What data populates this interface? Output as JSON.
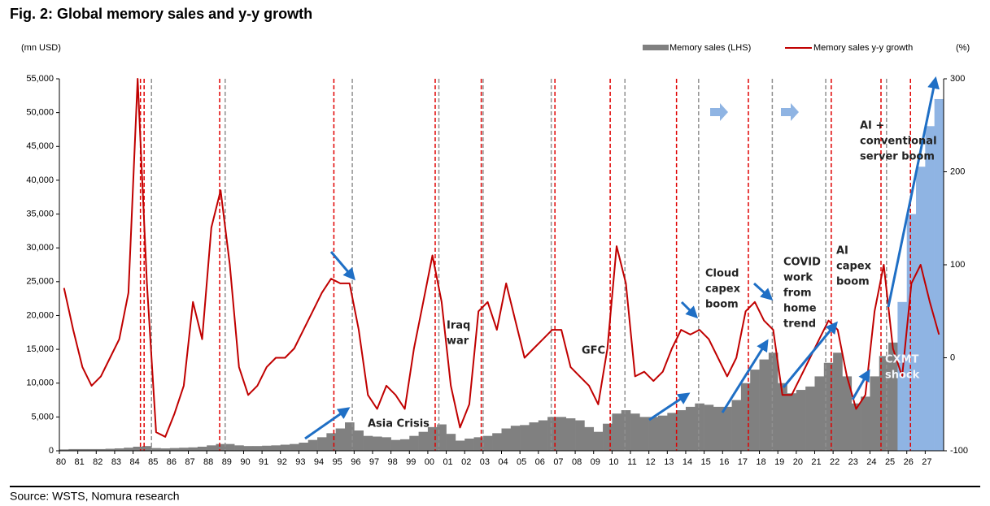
{
  "chart_data": {
    "type": "bar-line",
    "title": "Fig. 2: Global memory sales and y-y growth",
    "y_axis_label": "(mn USD)",
    "y2_axis_label": "(%)",
    "source": "Source: WSTS, Nomura research",
    "x": [
      1980,
      1980.5,
      1981,
      1981.5,
      1982,
      1982.5,
      1983,
      1983.5,
      1984,
      1984.5,
      1985,
      1985.5,
      1986,
      1986.5,
      1987,
      1987.5,
      1988,
      1988.5,
      1989,
      1989.5,
      1990,
      1990.5,
      1991,
      1991.5,
      1992,
      1992.5,
      1993,
      1993.5,
      1994,
      1994.5,
      1995,
      1995.5,
      1996,
      1996.5,
      1997,
      1997.5,
      1998,
      1998.5,
      1999,
      1999.5,
      2000,
      2000.5,
      2001,
      2001.5,
      2002,
      2002.5,
      2003,
      2003.5,
      2004,
      2004.5,
      2005,
      2005.5,
      2006,
      2006.5,
      2007,
      2007.5,
      2008,
      2008.5,
      2009,
      2009.5,
      2010,
      2010.5,
      2011,
      2011.5,
      2012,
      2012.5,
      2013,
      2013.5,
      2014,
      2014.5,
      2015,
      2015.5,
      2016,
      2016.5,
      2017,
      2017.5,
      2018,
      2018.5,
      2019,
      2019.5,
      2020,
      2020.5,
      2021,
      2021.5,
      2022,
      2022.5,
      2023,
      2023.5,
      2024,
      2024.5,
      2025,
      2025.5,
      2026,
      2026.5,
      2027,
      2027.5
    ],
    "series": [
      {
        "name": "Memory sales (LHS)",
        "kind": "bar",
        "color": "#808080",
        "values": [
          200,
          250,
          250,
          250,
          250,
          300,
          350,
          450,
          600,
          700,
          400,
          350,
          400,
          450,
          500,
          600,
          800,
          1000,
          1000,
          800,
          700,
          700,
          750,
          800,
          900,
          1000,
          1200,
          1600,
          2000,
          2600,
          3300,
          4200,
          3000,
          2200,
          2100,
          2000,
          1600,
          1700,
          2200,
          2800,
          3500,
          3900,
          2500,
          1500,
          1800,
          2000,
          2200,
          2600,
          3300,
          3700,
          3800,
          4200,
          4500,
          5000,
          5000,
          4800,
          4500,
          3500,
          2800,
          4000,
          5500,
          6000,
          5500,
          5000,
          5000,
          5200,
          5600,
          6000,
          6500,
          7000,
          6800,
          6500,
          6500,
          7500,
          10000,
          12000,
          13500,
          14500,
          10000,
          8500,
          9000,
          9500,
          11000,
          13000,
          14500,
          11000,
          7000,
          8000,
          11000,
          14000,
          16000,
          22000,
          35000,
          42000,
          48000,
          52000
        ],
        "colors": [
          "#808080",
          "#808080",
          "#808080",
          "#808080",
          "#808080",
          "#808080",
          "#808080",
          "#808080",
          "#808080",
          "#808080",
          "#808080",
          "#808080",
          "#808080",
          "#808080",
          "#808080",
          "#808080",
          "#808080",
          "#808080",
          "#808080",
          "#808080",
          "#808080",
          "#808080",
          "#808080",
          "#808080",
          "#808080",
          "#808080",
          "#808080",
          "#808080",
          "#808080",
          "#808080",
          "#808080",
          "#808080",
          "#808080",
          "#808080",
          "#808080",
          "#808080",
          "#808080",
          "#808080",
          "#808080",
          "#808080",
          "#808080",
          "#808080",
          "#808080",
          "#808080",
          "#808080",
          "#808080",
          "#808080",
          "#808080",
          "#808080",
          "#808080",
          "#808080",
          "#808080",
          "#808080",
          "#808080",
          "#808080",
          "#808080",
          "#808080",
          "#808080",
          "#808080",
          "#808080",
          "#808080",
          "#808080",
          "#808080",
          "#808080",
          "#808080",
          "#808080",
          "#808080",
          "#808080",
          "#808080",
          "#808080",
          "#808080",
          "#808080",
          "#808080",
          "#808080",
          "#808080",
          "#808080",
          "#808080",
          "#808080",
          "#808080",
          "#808080",
          "#808080",
          "#808080",
          "#808080",
          "#808080",
          "#808080",
          "#808080",
          "#808080",
          "#808080",
          "#808080",
          "#808080",
          "#808080",
          "#8fb4e3",
          "#8fb4e3",
          "#8fb4e3",
          "#8fb4e3",
          "#8fb4e3"
        ]
      },
      {
        "name": "Memory sales y-y growth",
        "kind": "line",
        "axis": "y2",
        "color": "#c00000",
        "values": [
          75,
          30,
          -10,
          -30,
          -20,
          0,
          20,
          70,
          300,
          80,
          -80,
          -85,
          -60,
          -30,
          60,
          20,
          140,
          180,
          100,
          -10,
          -40,
          -30,
          -10,
          0,
          0,
          10,
          30,
          50,
          70,
          85,
          80,
          80,
          30,
          -40,
          -55,
          -30,
          -40,
          -55,
          10,
          60,
          110,
          60,
          -30,
          -75,
          -50,
          50,
          60,
          30,
          80,
          40,
          0,
          10,
          20,
          30,
          30,
          -10,
          -20,
          -30,
          -50,
          10,
          120,
          80,
          -20,
          -15,
          -25,
          -15,
          10,
          30,
          25,
          30,
          20,
          0,
          -20,
          0,
          50,
          60,
          40,
          30,
          -40,
          -40,
          -20,
          0,
          20,
          40,
          30,
          -20,
          -55,
          -40,
          50,
          100,
          10,
          -20,
          80,
          100,
          60,
          25
        ]
      }
    ],
    "reference_lines": [
      {
        "x": 1984.4,
        "color": "#e00000"
      },
      {
        "x": 1984.6,
        "color": "#e00000"
      },
      {
        "x": 1985.0,
        "color": "#909090"
      },
      {
        "x": 1988.7,
        "color": "#e00000"
      },
      {
        "x": 1989.0,
        "color": "#909090"
      },
      {
        "x": 1994.9,
        "color": "#e00000"
      },
      {
        "x": 1995.9,
        "color": "#909090"
      },
      {
        "x": 2000.4,
        "color": "#e00000"
      },
      {
        "x": 2000.6,
        "color": "#909090"
      },
      {
        "x": 2002.9,
        "color": "#e00000"
      },
      {
        "x": 2003.0,
        "color": "#909090"
      },
      {
        "x": 2006.7,
        "color": "#909090"
      },
      {
        "x": 2006.9,
        "color": "#e00000"
      },
      {
        "x": 2009.9,
        "color": "#e00000"
      },
      {
        "x": 2010.7,
        "color": "#909090"
      },
      {
        "x": 2013.5,
        "color": "#e00000"
      },
      {
        "x": 2014.7,
        "color": "#909090"
      },
      {
        "x": 2017.4,
        "color": "#e00000"
      },
      {
        "x": 2018.7,
        "color": "#909090"
      },
      {
        "x": 2021.6,
        "color": "#909090"
      },
      {
        "x": 2021.9,
        "color": "#e00000"
      },
      {
        "x": 2024.6,
        "color": "#e00000"
      },
      {
        "x": 2024.9,
        "color": "#909090"
      },
      {
        "x": 2026.2,
        "color": "#e00000"
      }
    ],
    "annotations": [
      [
        "Asia Crisis"
      ],
      [
        "Iraq",
        "war"
      ],
      [
        "GFC"
      ],
      [
        "Cloud",
        "capex",
        "boom"
      ],
      [
        "COVID",
        "work",
        "from",
        "home",
        "trend"
      ],
      [
        "AI",
        "capex",
        "boom"
      ],
      [
        "AI +",
        "conventional",
        "server boom"
      ],
      [
        "CXMT",
        "shock"
      ]
    ],
    "xlim": [
      1980,
      2028
    ],
    "xticks": [
      {
        "value": 1980,
        "label": "80"
      },
      {
        "value": 1981,
        "label": "81"
      },
      {
        "value": 1982,
        "label": "82"
      },
      {
        "value": 1983,
        "label": "83"
      },
      {
        "value": 1984,
        "label": "84"
      },
      {
        "value": 1985,
        "label": "85"
      },
      {
        "value": 1986,
        "label": "86"
      },
      {
        "value": 1987,
        "label": "87"
      },
      {
        "value": 1988,
        "label": "88"
      },
      {
        "value": 1989,
        "label": "89"
      },
      {
        "value": 1990,
        "label": "90"
      },
      {
        "value": 1991,
        "label": "91"
      },
      {
        "value": 1992,
        "label": "92"
      },
      {
        "value": 1993,
        "label": "93"
      },
      {
        "value": 1994,
        "label": "94"
      },
      {
        "value": 1995,
        "label": "95"
      },
      {
        "value": 1996,
        "label": "96"
      },
      {
        "value": 1997,
        "label": "97"
      },
      {
        "value": 1998,
        "label": "98"
      },
      {
        "value": 1999,
        "label": "99"
      },
      {
        "value": 2000,
        "label": "00"
      },
      {
        "value": 2001,
        "label": "01"
      },
      {
        "value": 2002,
        "label": "02"
      },
      {
        "value": 2003,
        "label": "03"
      },
      {
        "value": 2004,
        "label": "04"
      },
      {
        "value": 2005,
        "label": "05"
      },
      {
        "value": 2006,
        "label": "06"
      },
      {
        "value": 2007,
        "label": "07"
      },
      {
        "value": 2008,
        "label": "08"
      },
      {
        "value": 2009,
        "label": "09"
      },
      {
        "value": 2010,
        "label": "10"
      },
      {
        "value": 2011,
        "label": "11"
      },
      {
        "value": 2012,
        "label": "12"
      },
      {
        "value": 2013,
        "label": "13"
      },
      {
        "value": 2014,
        "label": "14"
      },
      {
        "value": 2015,
        "label": "15"
      },
      {
        "value": 2016,
        "label": "16"
      },
      {
        "value": 2017,
        "label": "17"
      },
      {
        "value": 2018,
        "label": "18"
      },
      {
        "value": 2019,
        "label": "19"
      },
      {
        "value": 2020,
        "label": "20"
      },
      {
        "value": 2021,
        "label": "21"
      },
      {
        "value": 2022,
        "label": "22"
      },
      {
        "value": 2023,
        "label": "23"
      },
      {
        "value": 2024,
        "label": "24"
      },
      {
        "value": 2025,
        "label": "25"
      },
      {
        "value": 2026,
        "label": "26"
      },
      {
        "value": 2027,
        "label": "27"
      }
    ],
    "ylim": [
      0,
      55000
    ],
    "yticks": [
      0,
      {
        "value": 5000,
        "label": "5,000"
      },
      {
        "value": 10000,
        "label": "10,000"
      },
      {
        "value": 15000,
        "label": "15,000"
      },
      {
        "value": 20000,
        "label": "20,000"
      },
      {
        "value": 25000,
        "label": "25,000"
      },
      {
        "value": 30000,
        "label": "30,000"
      },
      {
        "value": 35000,
        "label": "35,000"
      },
      {
        "value": 40000,
        "label": "40,000"
      },
      {
        "value": 45000,
        "label": "45,000"
      },
      {
        "value": 50000,
        "label": "50,000"
      },
      {
        "value": 55000,
        "label": "55,000"
      }
    ],
    "y2lim": [
      -100,
      300
    ],
    "y2ticks": [
      -100,
      0,
      100,
      200,
      300
    ],
    "legend": "top-right"
  }
}
